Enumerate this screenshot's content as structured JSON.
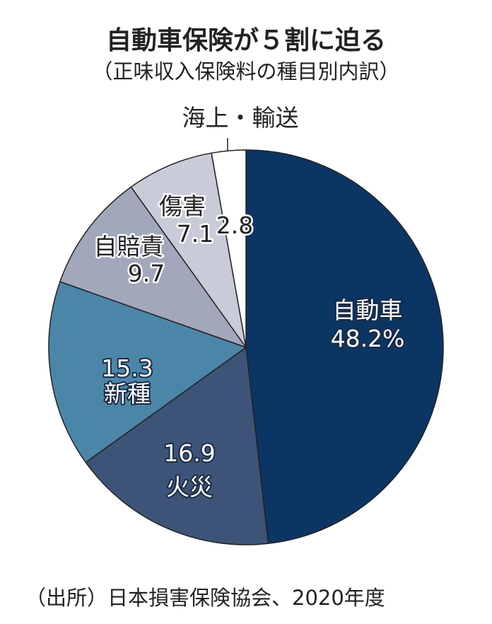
{
  "chart_data": {
    "type": "pie",
    "title": "自動車保険が５割に迫る",
    "subtitle": "（正味収入保険料の種目別内訳）",
    "unit": "%",
    "slices": [
      {
        "label": "自動車",
        "value": 48.2,
        "value_label": "48.2%",
        "color": "#0b3563"
      },
      {
        "label": "火災",
        "value": 16.9,
        "value_label": "16.9",
        "color": "#3d5478"
      },
      {
        "label": "新種",
        "value": 15.3,
        "value_label": "15.3",
        "color": "#4b86a9"
      },
      {
        "label": "自賠責",
        "value": 9.7,
        "value_label": "9.7",
        "color": "#a2a7bc"
      },
      {
        "label": "傷害",
        "value": 7.1,
        "value_label": "7.1",
        "color": "#c9cbd9"
      },
      {
        "label": "海上・輸送",
        "value": 2.8,
        "value_label": "2.8",
        "color": "#ffffff"
      }
    ],
    "source": "（出所）日本損害保険協会、2020年度"
  }
}
